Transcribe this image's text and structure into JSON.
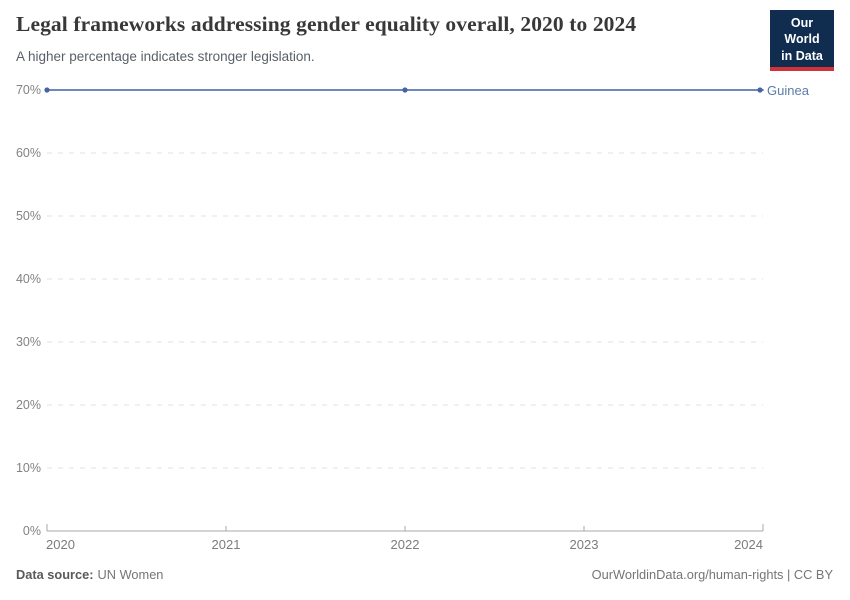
{
  "header": {
    "title": "Legal frameworks addressing gender equality overall, 2020 to 2024",
    "subtitle": "A higher percentage indicates stronger legislation.",
    "logo": {
      "line1": "Our World",
      "line2": "in Data"
    }
  },
  "chart_data": {
    "type": "line",
    "title": "Legal frameworks addressing gender equality overall, 2020 to 2024",
    "subtitle": "A higher percentage indicates stronger legislation.",
    "x": [
      2020,
      2021,
      2022,
      2023,
      2024
    ],
    "series": [
      {
        "name": "Guinea",
        "values": [
          70,
          70,
          70,
          70,
          70
        ],
        "markers_at": [
          2020,
          2022,
          2024
        ]
      }
    ],
    "xlabel": "",
    "ylabel": "",
    "ylim": [
      0,
      70
    ],
    "y_ticks": [
      0,
      10,
      20,
      30,
      40,
      50,
      60,
      70
    ],
    "y_tick_suffix": "%",
    "x_ticks": [
      2020,
      2021,
      2022,
      2023,
      2024
    ],
    "grid": "horizontal-dashed",
    "legend_position": "line-end-label"
  },
  "colors": {
    "line": "#7088b8",
    "marker": "#46659f",
    "series_label": "#5b7ba8",
    "gridline": "#e2e2e2",
    "axis": "#a8a8a8",
    "tick_label": "#828282",
    "title": "#383838",
    "logo_bg": "#102d50",
    "logo_accent": "#d13239"
  },
  "footer": {
    "source_label": "Data source:",
    "source_value": "UN Women",
    "credit": "OurWorldinData.org/human-rights | CC BY"
  }
}
